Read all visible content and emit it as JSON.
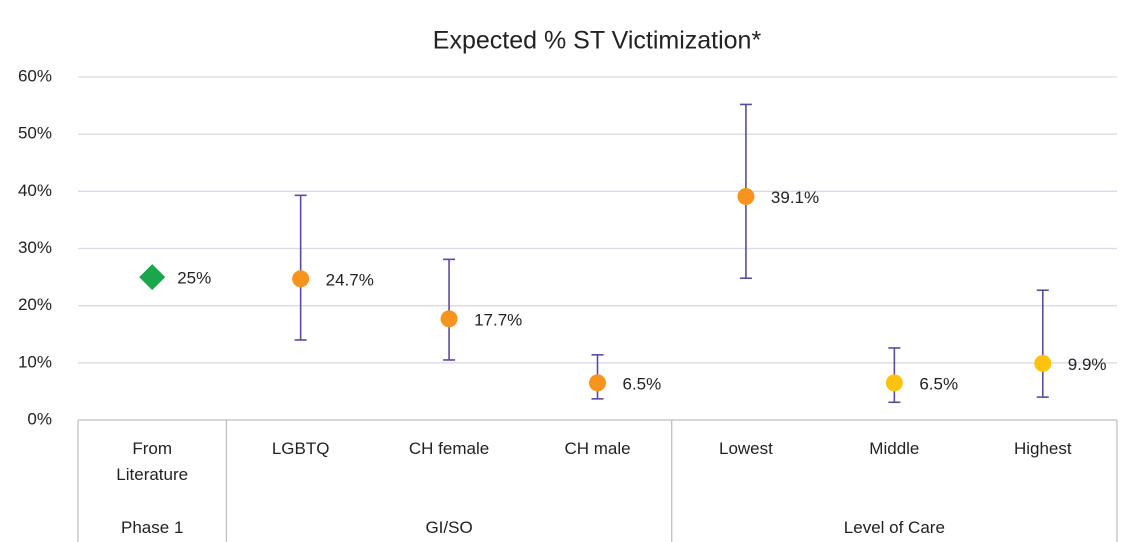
{
  "chart_data": {
    "type": "errorbar",
    "title": "Expected % ST Victimization*",
    "groups": [
      {
        "name": "Phase 1",
        "categories": [
          "From Literature"
        ]
      },
      {
        "name": "GI/SO",
        "categories": [
          "LGBTQ",
          "CH female",
          "CH male"
        ]
      },
      {
        "name": "Level of Care",
        "categories": [
          "Lowest",
          "Middle",
          "Highest"
        ]
      }
    ],
    "series": [
      {
        "values": [
          25,
          24.7,
          17.7,
          6.5,
          39.1,
          6.5,
          9.9
        ],
        "value_labels": [
          "25%",
          "24.7%",
          "17.7%",
          "6.5%",
          "39.1%",
          "6.5%",
          "9.9%"
        ],
        "lower": [
          null,
          14.0,
          10.5,
          3.7,
          24.8,
          3.1,
          4.0
        ],
        "upper": [
          null,
          39.3,
          28.1,
          11.4,
          55.2,
          12.6,
          22.7
        ],
        "colors": [
          "#1aa64b",
          "#f7941d",
          "#f7941d",
          "#f7941d",
          "#f7941d",
          "#ffc20e",
          "#ffc20e"
        ],
        "markers": [
          "diamond",
          "circle",
          "circle",
          "circle",
          "circle",
          "circle",
          "circle"
        ],
        "error_color": "#5b4a9e"
      }
    ],
    "ylim": [
      0,
      60
    ],
    "yticks": [
      {
        "value": 0,
        "label": "0%"
      },
      {
        "value": 10,
        "label": "10%"
      },
      {
        "value": 20,
        "label": "20%"
      },
      {
        "value": 30,
        "label": "30%"
      },
      {
        "value": 40,
        "label": "40%"
      },
      {
        "value": 50,
        "label": "50%"
      },
      {
        "value": 60,
        "label": "60%"
      }
    ],
    "grid": true
  }
}
